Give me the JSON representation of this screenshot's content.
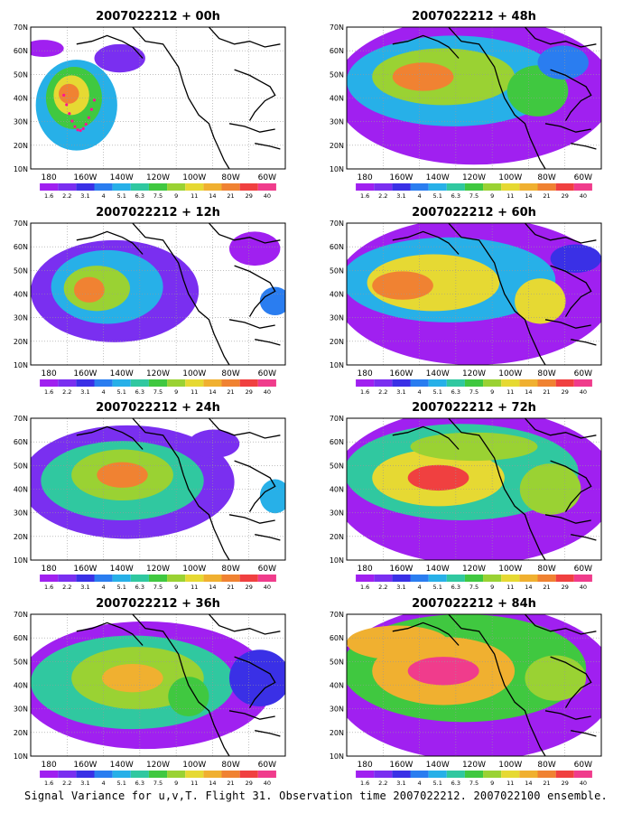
{
  "caption": "Signal Variance for u,v,T. Flight 31. Observation time 2007022212. 2007022100 ensemble.",
  "lat_labels": [
    "70N",
    "60N",
    "50N",
    "40N",
    "30N",
    "20N",
    "10N"
  ],
  "lon_labels": [
    "180",
    "160W",
    "140W",
    "120W",
    "100W",
    "80W",
    "60W"
  ],
  "colorbar": {
    "labels": [
      "1.6",
      "2.2",
      "3.1",
      "4",
      "5.1",
      "6.3",
      "7.5",
      "9",
      "11",
      "14",
      "21",
      "29",
      "40"
    ],
    "colors": [
      "#a020f0",
      "#7a2ff0",
      "#3a30e6",
      "#2a7df0",
      "#27b0e8",
      "#30c8a0",
      "#40c840",
      "#9ad233",
      "#e6d933",
      "#f0b030",
      "#f08232",
      "#f04040",
      "#f03c8c"
    ]
  },
  "panels": [
    {
      "title": "2007022212 + 00h",
      "lead_hours": 0
    },
    {
      "title": "2007022212 + 48h",
      "lead_hours": 48
    },
    {
      "title": "2007022212 + 12h",
      "lead_hours": 12
    },
    {
      "title": "2007022212 + 60h",
      "lead_hours": 60
    },
    {
      "title": "2007022212 + 24h",
      "lead_hours": 24
    },
    {
      "title": "2007022212 + 72h",
      "lead_hours": 72
    },
    {
      "title": "2007022212 + 36h",
      "lead_hours": 36
    },
    {
      "title": "2007022212 + 84h",
      "lead_hours": 84
    }
  ]
}
